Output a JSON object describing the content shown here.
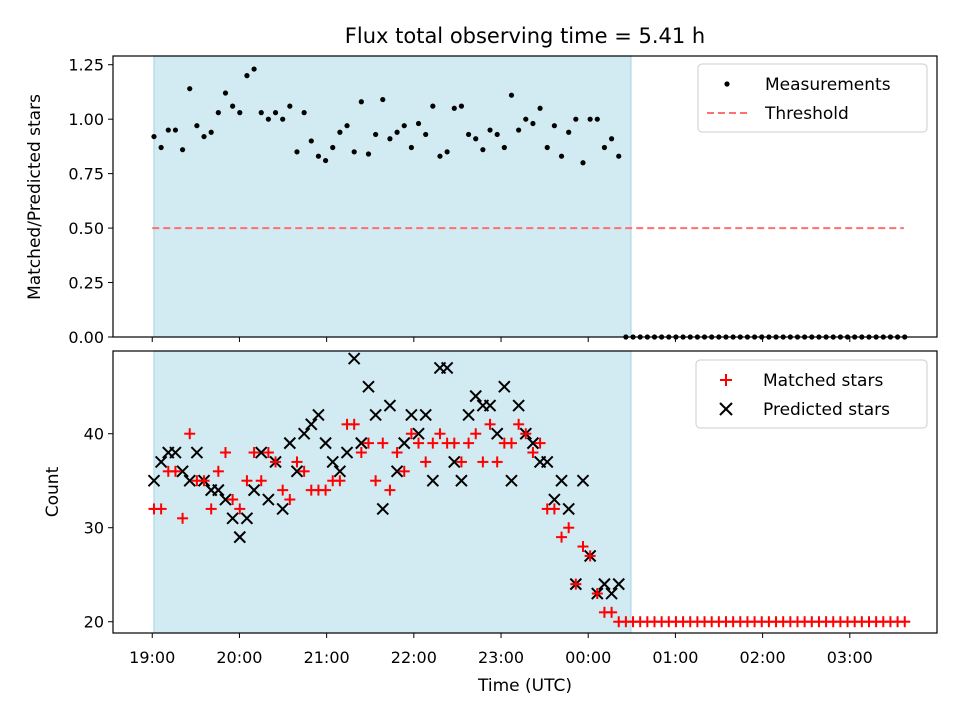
{
  "title": "Flux total observing time = 5.41 h",
  "colors": {
    "shade": "#add8e6",
    "threshold": "#ff6f6f",
    "matched": "#ff0000",
    "predicted": "#000000",
    "measurement": "#000000"
  },
  "chart_data": [
    {
      "type": "scatter",
      "title": "Flux total observing time = 5.41 h",
      "xlabel": "",
      "ylabel": "Matched/Predicted stars",
      "x_unit": "hours since 19:00 UTC",
      "xlim": [
        -0.45,
        9.0
      ],
      "ylim": [
        0.0,
        1.29
      ],
      "yticks": [
        0.0,
        0.25,
        0.5,
        0.75,
        1.0,
        1.25
      ],
      "ytick_labels": [
        "0.00",
        "0.25",
        "0.50",
        "0.75",
        "1.00",
        "1.25"
      ],
      "observing_window": [
        0.02,
        5.49
      ],
      "threshold": 0.5,
      "threshold_x": [
        0.0,
        8.62
      ],
      "legend": [
        "Measurements",
        "Threshold"
      ],
      "legend_position": "top-right",
      "measurements": [
        0.92,
        0.87,
        0.95,
        0.95,
        0.86,
        1.14,
        0.97,
        0.92,
        0.94,
        1.03,
        1.12,
        1.06,
        1.03,
        1.2,
        1.23,
        1.03,
        1.0,
        1.03,
        1.0,
        1.06,
        0.85,
        1.03,
        0.9,
        0.83,
        0.81,
        0.87,
        0.94,
        0.97,
        0.85,
        1.08,
        0.84,
        0.93,
        1.09,
        0.91,
        0.94,
        0.97,
        0.87,
        0.98,
        0.93,
        1.06,
        0.83,
        0.85,
        1.05,
        1.06,
        0.93,
        0.91,
        0.86,
        0.95,
        0.93,
        0.87,
        1.11,
        0.95,
        1.0,
        0.98,
        1.05,
        0.87,
        0.97,
        0.83,
        0.94,
        1.0,
        0.8,
        1.0,
        1.0,
        0.87,
        0.91,
        0.83,
        0,
        0,
        0,
        0,
        0,
        0,
        0,
        0,
        0,
        0,
        0,
        0,
        0,
        0,
        0,
        0,
        0,
        0,
        0,
        0,
        0,
        0,
        0,
        0,
        0,
        0,
        0,
        0,
        0,
        0,
        0,
        0,
        0,
        0,
        0,
        0,
        0,
        0,
        0,
        0
      ],
      "x_start": 0.02,
      "x_step": 0.082
    },
    {
      "type": "scatter",
      "title": "",
      "xlabel": "Time (UTC)",
      "ylabel": "Count",
      "x_unit": "hours since 19:00 UTC",
      "xlim": [
        -0.45,
        9.0
      ],
      "ylim": [
        18.8,
        48.8
      ],
      "yticks": [
        20,
        30,
        40
      ],
      "ytick_labels": [
        "20",
        "30",
        "40"
      ],
      "xticks": [
        0,
        1,
        2,
        3,
        4,
        5,
        6,
        7,
        8
      ],
      "xtick_labels": [
        "19:00",
        "20:00",
        "21:00",
        "22:00",
        "23:00",
        "00:00",
        "01:00",
        "02:00",
        "03:00"
      ],
      "observing_window": [
        0.02,
        5.49
      ],
      "legend": [
        "Matched stars",
        "Predicted stars"
      ],
      "legend_position": "top-right",
      "series": [
        {
          "name": "Matched stars",
          "marker": "plus",
          "color": "#ff0000",
          "values": [
            32,
            32,
            36,
            36,
            31,
            40,
            35,
            35,
            32,
            36,
            38,
            33,
            32,
            35,
            38,
            35,
            38,
            37,
            34,
            33,
            37,
            36,
            34,
            34,
            34,
            35,
            35,
            41,
            41,
            38,
            39,
            35,
            39,
            34,
            38,
            36,
            40,
            39,
            37,
            39,
            40,
            39,
            39,
            37,
            39,
            40,
            37,
            41,
            37,
            39,
            39,
            41,
            40,
            38,
            39,
            32,
            32,
            29,
            30,
            24,
            28,
            27,
            23,
            21,
            21,
            20,
            20,
            20,
            20,
            20,
            20,
            20,
            20,
            20,
            20,
            20,
            20,
            20,
            20,
            20,
            20,
            20,
            20,
            20,
            20,
            20,
            20,
            20,
            20,
            20,
            20,
            20,
            20,
            20,
            20,
            20,
            20,
            20,
            20,
            20,
            20,
            20,
            20,
            20,
            20,
            20
          ]
        },
        {
          "name": "Predicted stars",
          "marker": "x",
          "color": "#000000",
          "values": [
            35,
            37,
            38,
            38,
            36,
            35,
            38,
            35,
            34,
            34,
            33,
            31,
            29,
            31,
            34,
            38,
            33,
            37,
            32,
            39,
            36,
            40,
            41,
            42,
            39,
            37,
            36,
            38,
            48,
            39,
            45,
            42,
            32,
            43,
            36,
            39,
            42,
            40,
            42,
            35,
            47,
            47,
            37,
            35,
            42,
            44,
            43,
            43,
            40,
            45,
            35,
            43,
            40,
            39,
            37,
            37,
            33,
            35,
            32,
            24,
            35,
            27,
            23,
            24,
            23,
            24
          ]
        }
      ]
    }
  ]
}
